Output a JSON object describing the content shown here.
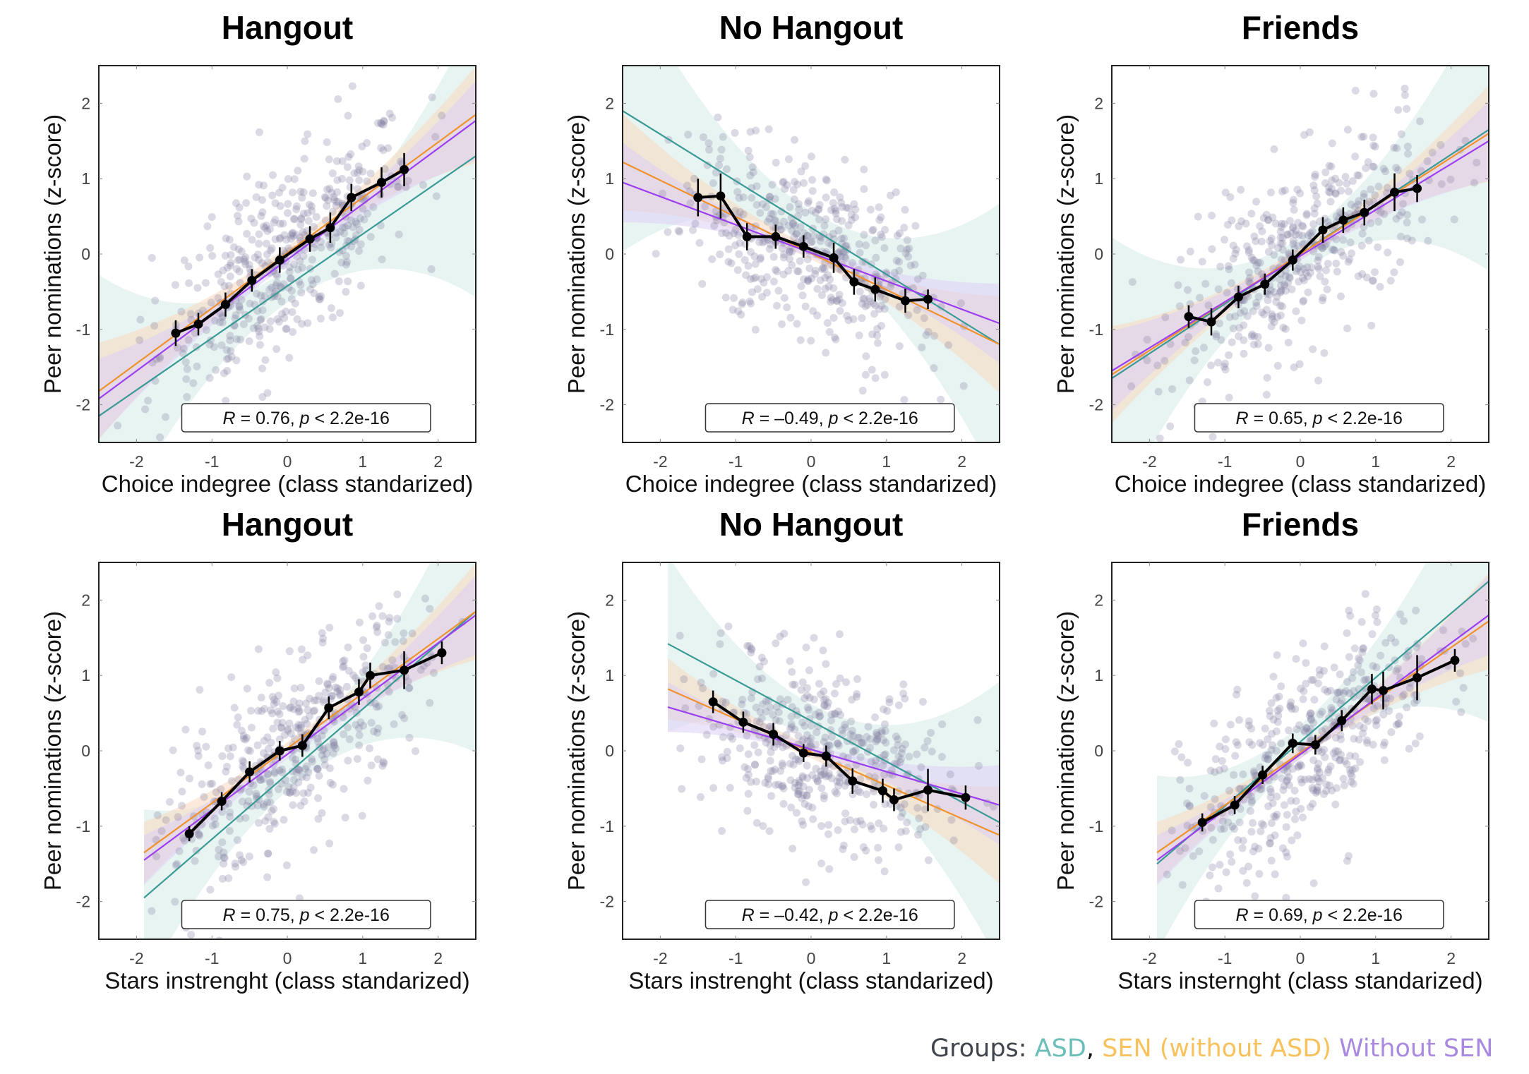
{
  "colors": {
    "ASD": "#3a9a96",
    "SEN": "#f0922b",
    "WithoutSEN": "#9b3ff0",
    "points": "#7d7b9e",
    "means": "#000000"
  },
  "legend": {
    "prefix": "Groups: ",
    "items": [
      {
        "label": "ASD",
        "color": "#6cbfb9"
      },
      {
        "label": ", ",
        "color": "#111111"
      },
      {
        "label": "SEN (without ASD)",
        "color": "#f7c15c"
      },
      {
        "label": " ",
        "color": "#111111"
      },
      {
        "label": "Without SEN",
        "color": "#a98ae0"
      }
    ],
    "prefix_color": "#40444c"
  },
  "chart_data": [
    {
      "type": "scatter",
      "title": "Hangout",
      "xlabel": "Choice indegree (class standarized)",
      "ylabel": "Peer nominations (z-score)",
      "xlim": [
        -2.5,
        2.5
      ],
      "ylim": [
        -2.5,
        2.5
      ],
      "xticks": [
        "-2",
        "-1",
        "0",
        "1",
        "2"
      ],
      "yticks": [
        "-2",
        "-1",
        "0",
        "1",
        "2"
      ],
      "annotation": {
        "r_label": "R",
        "r_value": " = 0.76, ",
        "p_label": "p",
        "p_value": " < 2.2e-16"
      },
      "means": {
        "x": [
          -1.48,
          -1.18,
          -0.82,
          -0.47,
          -0.1,
          0.3,
          0.57,
          0.85,
          1.25,
          1.55
        ],
        "y": [
          -1.05,
          -0.93,
          -0.67,
          -0.35,
          -0.08,
          0.2,
          0.35,
          0.75,
          0.95,
          1.12
        ],
        "err": [
          0.17,
          0.15,
          0.16,
          0.15,
          0.17,
          0.17,
          0.2,
          0.18,
          0.2,
          0.22
        ]
      },
      "fits": [
        {
          "group": "ASD",
          "x": [
            -2.5,
            2.5
          ],
          "y": [
            -2.15,
            1.3
          ]
        },
        {
          "group": "SEN",
          "x": [
            -2.5,
            2.5
          ],
          "y": [
            -1.82,
            1.85
          ]
        },
        {
          "group": "WithoutSEN",
          "x": [
            -2.5,
            2.5
          ],
          "y": [
            -1.92,
            1.77
          ]
        }
      ]
    },
    {
      "type": "scatter",
      "title": "No Hangout",
      "xlabel": "Choice indegree (class standarized)",
      "ylabel": "Peer nominations (z-score)",
      "xlim": [
        -2.5,
        2.5
      ],
      "ylim": [
        -2.5,
        2.5
      ],
      "xticks": [
        "-2",
        "-1",
        "0",
        "1",
        "2"
      ],
      "yticks": [
        "-2",
        "-1",
        "0",
        "1",
        "2"
      ],
      "annotation": {
        "r_label": "R",
        "r_value": " = –0.49, ",
        "p_label": "p",
        "p_value": " < 2.2e-16"
      },
      "means": {
        "x": [
          -1.5,
          -1.2,
          -0.85,
          -0.47,
          -0.1,
          0.3,
          0.57,
          0.85,
          1.25,
          1.55
        ],
        "y": [
          0.75,
          0.77,
          0.23,
          0.23,
          0.1,
          -0.05,
          -0.37,
          -0.47,
          -0.62,
          -0.6
        ],
        "err": [
          0.25,
          0.3,
          0.18,
          0.16,
          0.15,
          0.2,
          0.17,
          0.16,
          0.16,
          0.13
        ]
      },
      "fits": [
        {
          "group": "ASD",
          "x": [
            -2.5,
            2.5
          ],
          "y": [
            1.9,
            -1.2
          ]
        },
        {
          "group": "SEN",
          "x": [
            -2.5,
            2.5
          ],
          "y": [
            1.22,
            -1.2
          ]
        },
        {
          "group": "WithoutSEN",
          "x": [
            -2.5,
            2.5
          ],
          "y": [
            0.95,
            -0.92
          ]
        }
      ]
    },
    {
      "type": "scatter",
      "title": "Friends",
      "xlabel": "Choice indegree (class standarized)",
      "ylabel": "Peer nominations (z-score)",
      "xlim": [
        -2.5,
        2.5
      ],
      "ylim": [
        -2.5,
        2.5
      ],
      "xticks": [
        "-2",
        "-1",
        "0",
        "1",
        "2"
      ],
      "yticks": [
        "-2",
        "-1",
        "0",
        "1",
        "2"
      ],
      "annotation": {
        "r_label": "R",
        "r_value": " = 0.65, ",
        "p_label": "p",
        "p_value": " < 2.2e-16"
      },
      "means": {
        "x": [
          -1.48,
          -1.18,
          -0.82,
          -0.47,
          -0.1,
          0.3,
          0.57,
          0.85,
          1.25,
          1.55
        ],
        "y": [
          -0.83,
          -0.9,
          -0.57,
          -0.4,
          -0.08,
          0.32,
          0.45,
          0.55,
          0.82,
          0.87
        ],
        "err": [
          0.15,
          0.18,
          0.15,
          0.14,
          0.14,
          0.17,
          0.17,
          0.17,
          0.25,
          0.18
        ]
      },
      "fits": [
        {
          "group": "ASD",
          "x": [
            -2.5,
            2.5
          ],
          "y": [
            -1.65,
            1.65
          ]
        },
        {
          "group": "SEN",
          "x": [
            -2.5,
            2.5
          ],
          "y": [
            -1.6,
            1.6
          ]
        },
        {
          "group": "WithoutSEN",
          "x": [
            -2.5,
            2.5
          ],
          "y": [
            -1.55,
            1.5
          ]
        }
      ]
    },
    {
      "type": "scatter",
      "title": "Hangout",
      "xlabel": "Stars instrenght (class standarized)",
      "ylabel": "Peer nominations (z-score)",
      "xlim": [
        -2.5,
        2.5
      ],
      "ylim": [
        -2.5,
        2.5
      ],
      "xticks": [
        "-2",
        "-1",
        "0",
        "1",
        "2"
      ],
      "yticks": [
        "-2",
        "-1",
        "0",
        "1",
        "2"
      ],
      "annotation": {
        "r_label": "R",
        "r_value": " = 0.75, ",
        "p_label": "p",
        "p_value": " < 2.2e-16"
      },
      "means": {
        "x": [
          -1.3,
          -0.87,
          -0.5,
          -0.1,
          0.2,
          0.55,
          0.95,
          1.1,
          1.55,
          2.05
        ],
        "y": [
          -1.1,
          -0.67,
          -0.28,
          0.0,
          0.07,
          0.57,
          0.78,
          1.0,
          1.07,
          1.3
        ],
        "err": [
          0.1,
          0.12,
          0.14,
          0.13,
          0.15,
          0.15,
          0.17,
          0.17,
          0.25,
          0.15
        ]
      },
      "fits": [
        {
          "group": "ASD",
          "x": [
            -1.9,
            2.5
          ],
          "y": [
            -1.95,
            1.85
          ]
        },
        {
          "group": "SEN",
          "x": [
            -1.9,
            2.5
          ],
          "y": [
            -1.35,
            1.85
          ]
        },
        {
          "group": "WithoutSEN",
          "x": [
            -1.9,
            2.5
          ],
          "y": [
            -1.45,
            1.8
          ]
        }
      ]
    },
    {
      "type": "scatter",
      "title": "No Hangout",
      "xlabel": "Stars instrenght (class standarized)",
      "ylabel": "Peer nominations (z-score)",
      "xlim": [
        -2.5,
        2.5
      ],
      "ylim": [
        -2.5,
        2.5
      ],
      "xticks": [
        "-2",
        "-1",
        "0",
        "1",
        "2"
      ],
      "yticks": [
        "-2",
        "-1",
        "0",
        "1",
        "2"
      ],
      "annotation": {
        "r_label": "R",
        "r_value": " = –0.42, ",
        "p_label": "p",
        "p_value": " < 2.2e-16"
      },
      "means": {
        "x": [
          -1.3,
          -0.9,
          -0.5,
          -0.1,
          0.2,
          0.55,
          0.95,
          1.1,
          1.55,
          2.05
        ],
        "y": [
          0.65,
          0.38,
          0.22,
          -0.03,
          -0.07,
          -0.4,
          -0.53,
          -0.65,
          -0.52,
          -0.62
        ],
        "err": [
          0.15,
          0.14,
          0.15,
          0.12,
          0.14,
          0.17,
          0.16,
          0.15,
          0.28,
          0.16
        ]
      },
      "fits": [
        {
          "group": "ASD",
          "x": [
            -1.9,
            2.5
          ],
          "y": [
            1.42,
            -0.95
          ]
        },
        {
          "group": "SEN",
          "x": [
            -1.9,
            2.5
          ],
          "y": [
            0.82,
            -1.12
          ]
        },
        {
          "group": "WithoutSEN",
          "x": [
            -1.9,
            2.5
          ],
          "y": [
            0.58,
            -0.72
          ]
        }
      ]
    },
    {
      "type": "scatter",
      "title": "Friends",
      "xlabel": "Stars insternght (class standarized)",
      "ylabel": "Peer nominations (z-score)",
      "xlim": [
        -2.5,
        2.5
      ],
      "ylim": [
        -2.5,
        2.5
      ],
      "xticks": [
        "-2",
        "-1",
        "0",
        "1",
        "2"
      ],
      "yticks": [
        "-2",
        "-1",
        "0",
        "1",
        "2"
      ],
      "annotation": {
        "r_label": "R",
        "r_value": " = 0.69, ",
        "p_label": "p",
        "p_value": " < 2.2e-16"
      },
      "means": {
        "x": [
          -1.3,
          -0.87,
          -0.5,
          -0.1,
          0.2,
          0.55,
          0.95,
          1.1,
          1.55,
          2.05
        ],
        "y": [
          -0.95,
          -0.72,
          -0.32,
          0.1,
          0.08,
          0.4,
          0.82,
          0.8,
          0.97,
          1.2
        ],
        "err": [
          0.12,
          0.12,
          0.12,
          0.13,
          0.13,
          0.14,
          0.2,
          0.25,
          0.3,
          0.15
        ]
      },
      "fits": [
        {
          "group": "ASD",
          "x": [
            -1.9,
            2.5
          ],
          "y": [
            -1.5,
            2.25
          ]
        },
        {
          "group": "SEN",
          "x": [
            -1.9,
            2.5
          ],
          "y": [
            -1.35,
            1.72
          ]
        },
        {
          "group": "WithoutSEN",
          "x": [
            -1.9,
            2.5
          ],
          "y": [
            -1.45,
            1.8
          ]
        }
      ]
    }
  ]
}
